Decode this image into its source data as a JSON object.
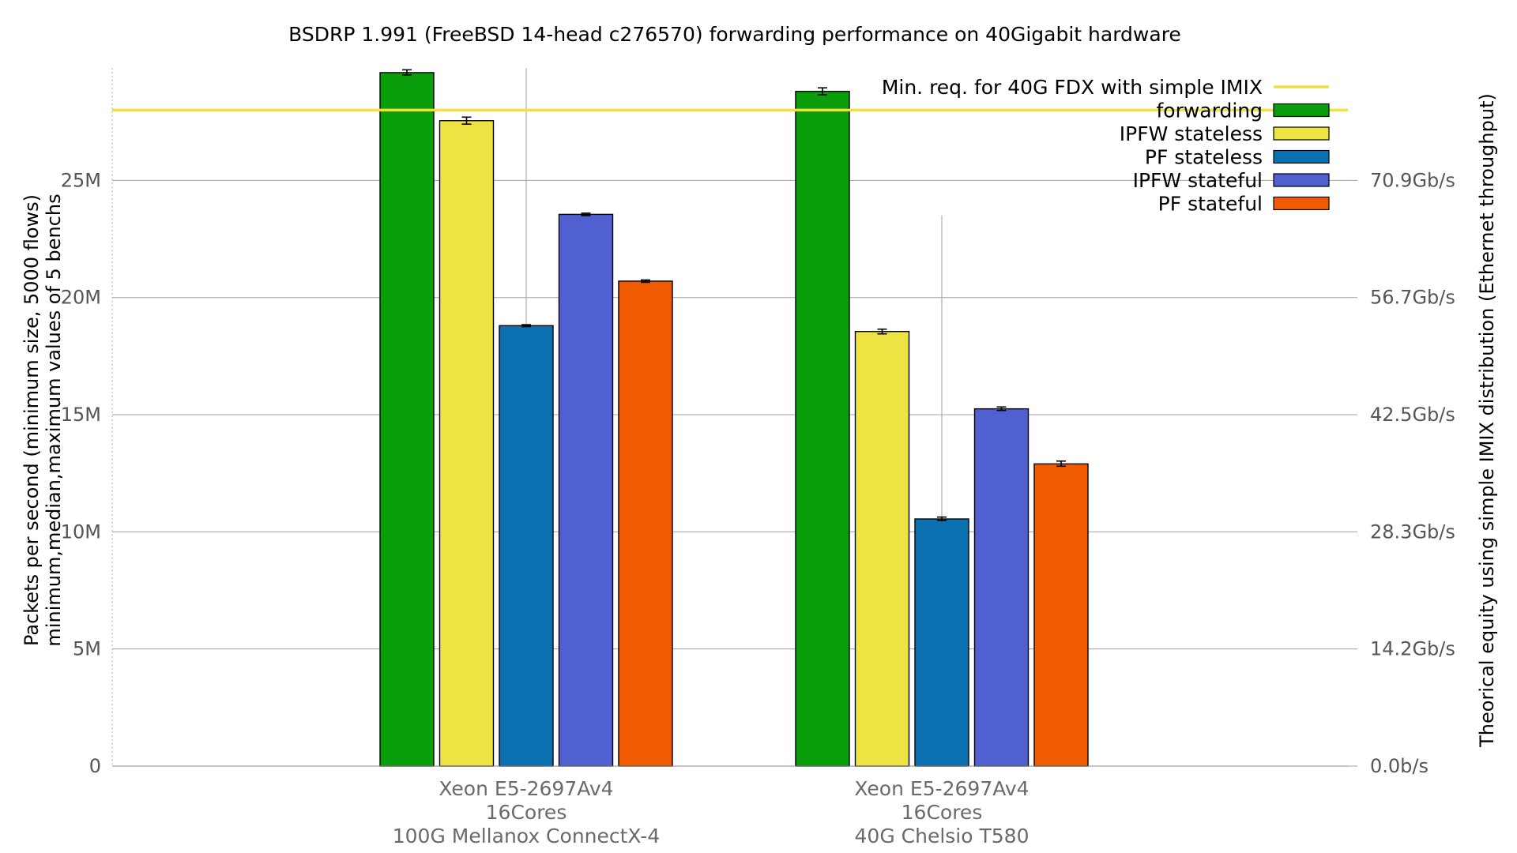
{
  "chart_data": {
    "type": "bar",
    "title": "BSDRP 1.991 (FreeBSD 14-head c276570) forwarding performance on 40Gigabit hardware",
    "ylabel": [
      "Packets per second (minimum size, 5000 flows)",
      "minimum,median,maximum values of 5 benchs"
    ],
    "y2label": "Theorical equity using simple IMIX distribution (Ethernet throughput)",
    "ylim": [
      0,
      29800000
    ],
    "yticks": [
      {
        "value": 0,
        "label": "0"
      },
      {
        "value": 5000000,
        "label": "5M"
      },
      {
        "value": 10000000,
        "label": "10M"
      },
      {
        "value": 15000000,
        "label": "15M"
      },
      {
        "value": 20000000,
        "label": "20M"
      },
      {
        "value": 25000000,
        "label": "25M"
      }
    ],
    "y2ticks": [
      {
        "value": 0,
        "label": "0.0b/s"
      },
      {
        "value": 5000000,
        "label": "14.2Gb/s"
      },
      {
        "value": 10000000,
        "label": "28.3Gb/s"
      },
      {
        "value": 15000000,
        "label": "42.5Gb/s"
      },
      {
        "value": 20000000,
        "label": "56.7Gb/s"
      },
      {
        "value": 25000000,
        "label": "70.9Gb/s"
      }
    ],
    "grid": true,
    "legend_position": "top-right",
    "categories": [
      [
        "Xeon E5-2697Av4",
        "16Cores",
        "100G Mellanox ConnectX-4"
      ],
      [
        "Xeon E5-2697Av4",
        "16Cores",
        "40G Chelsio T580"
      ]
    ],
    "reference_line": {
      "name": "Min. req. for 40G FDX with simple IMIX",
      "value": 28000000,
      "color": "#f0e040"
    },
    "series": [
      {
        "name": "forwarding",
        "color": "#0a9e0a",
        "values": [
          29600000,
          28800000
        ],
        "min": [
          29500000,
          28650000
        ],
        "max": [
          29720000,
          28950000
        ]
      },
      {
        "name": "IPFW stateless",
        "color": "#ede342",
        "values": [
          27550000,
          18550000
        ],
        "min": [
          27400000,
          18450000
        ],
        "max": [
          27700000,
          18650000
        ]
      },
      {
        "name": "PF stateless",
        "color": "#0a70b0",
        "values": [
          18800000,
          10550000
        ],
        "min": [
          18760000,
          10480000
        ],
        "max": [
          18840000,
          10630000
        ]
      },
      {
        "name": "IPFW stateful",
        "color": "#5060d0",
        "values": [
          23550000,
          15250000
        ],
        "min": [
          23500000,
          15180000
        ],
        "max": [
          23600000,
          15330000
        ]
      },
      {
        "name": "PF stateful",
        "color": "#f05a00",
        "values": [
          20700000,
          12900000
        ],
        "min": [
          20650000,
          12800000
        ],
        "max": [
          20750000,
          13020000
        ]
      }
    ]
  }
}
